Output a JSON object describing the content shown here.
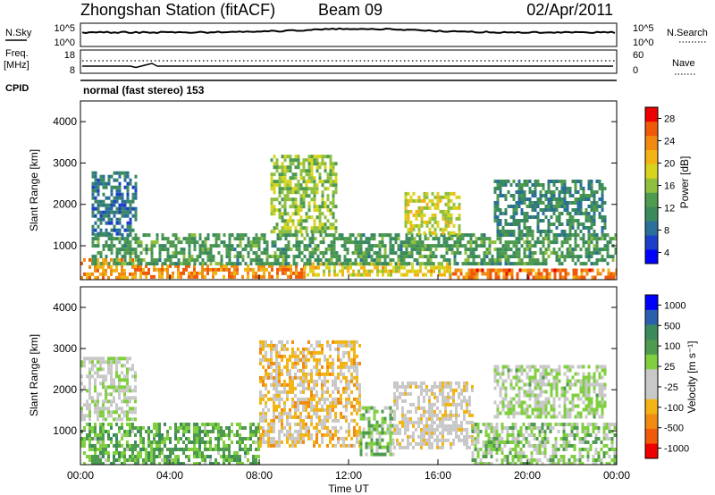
{
  "header": {
    "title": "Zhongshan Station (fitACF)",
    "beam": "Beam 09",
    "date": "02/Apr/2011"
  },
  "aux_panels": {
    "nsky_label": "N.Sky",
    "nsky_ticks": [
      "10^5",
      "10^0"
    ],
    "nsearch_label": "N.Search",
    "nsearch_ticks": [
      "10^5",
      "10^0"
    ],
    "freq_label": "Freq.",
    "freq_unit": "[MHz]",
    "freq_ticks": [
      "18",
      "8"
    ],
    "nave_label": "Nave",
    "nave_ticks": [
      "60",
      "0"
    ],
    "cpid_label": "CPID",
    "cpid_text": "normal (fast stereo) 153"
  },
  "colors": {
    "power_scale": [
      "#0000ff",
      "#1b3fc8",
      "#2a6e9a",
      "#3a8a5e",
      "#4e9a4e",
      "#8fbf3f",
      "#d8d41e",
      "#f2b415",
      "#f08a10",
      "#ef5a08",
      "#ee0000"
    ],
    "velocity_scale": [
      "#ee0000",
      "#f05a0a",
      "#f08a10",
      "#f2b415",
      "#c8c8c8",
      "#c8c8c8",
      "#7fcf3f",
      "#4e9a4e",
      "#3a8a5e",
      "#2a5fb0",
      "#0000ff"
    ]
  },
  "chart_data": [
    {
      "type": "heatmap",
      "panel": "power",
      "ylabel": "Slant Range [km]",
      "ylim": [
        180,
        4500
      ],
      "y_ticks": [
        "4000",
        "3000",
        "2000",
        "1000"
      ],
      "xlim": [
        0,
        24
      ],
      "colorbar_label": "Power [dB]",
      "colorbar_ticks": [
        "28",
        "24",
        "20",
        "16",
        "12",
        "8",
        "4"
      ],
      "colorbar_range": [
        0,
        32
      ],
      "regions": [
        {
          "t0": 0.0,
          "t1": 2.4,
          "r0": 250,
          "r1": 700,
          "value": 24
        },
        {
          "t0": 2.4,
          "t1": 10.0,
          "r0": 250,
          "r1": 550,
          "value": 25
        },
        {
          "t0": 10.0,
          "t1": 16.5,
          "r0": 280,
          "r1": 600,
          "value": 20
        },
        {
          "t0": 16.5,
          "t1": 24.0,
          "r0": 220,
          "r1": 450,
          "value": 26
        },
        {
          "t0": 0.5,
          "t1": 24.0,
          "r0": 550,
          "r1": 1300,
          "value": 12
        },
        {
          "t0": 0.5,
          "t1": 2.5,
          "r0": 1300,
          "r1": 2800,
          "value": 8
        },
        {
          "t0": 8.5,
          "t1": 11.5,
          "r0": 1300,
          "r1": 3200,
          "value": 16
        },
        {
          "t0": 14.5,
          "t1": 17.0,
          "r0": 1300,
          "r1": 2300,
          "value": 18
        },
        {
          "t0": 18.5,
          "t1": 23.5,
          "r0": 1300,
          "r1": 2600,
          "value": 10
        }
      ]
    },
    {
      "type": "heatmap",
      "panel": "velocity",
      "ylabel": "Slant Range [km]",
      "xlabel": "Time UT",
      "ylim": [
        180,
        4500
      ],
      "y_ticks": [
        "4000",
        "3000",
        "2000",
        "1000"
      ],
      "xlim": [
        0,
        24
      ],
      "x_ticks": [
        "00:00",
        "04:00",
        "08:00",
        "12:00",
        "16:00",
        "20:00",
        "00:00"
      ],
      "colorbar_label": "Velocity [m s⁻¹]",
      "colorbar_ticks": [
        "1000",
        "500",
        "100",
        "25",
        "-25",
        "-100",
        "-500",
        "-1000"
      ],
      "colorbar_range": [
        -1000,
        1000
      ],
      "regions": [
        {
          "t0": 0.0,
          "t1": 8.0,
          "r0": 220,
          "r1": 1200,
          "value": 300
        },
        {
          "t0": 0.0,
          "t1": 2.5,
          "r0": 1300,
          "r1": 2800,
          "value": 0
        },
        {
          "t0": 8.0,
          "t1": 12.5,
          "r0": 600,
          "r1": 3200,
          "value": -300
        },
        {
          "t0": 12.5,
          "t1": 14.0,
          "r0": 400,
          "r1": 1600,
          "value": 200
        },
        {
          "t0": 14.0,
          "t1": 17.5,
          "r0": 600,
          "r1": 2200,
          "value": -150
        },
        {
          "t0": 17.5,
          "t1": 24.0,
          "r0": 220,
          "r1": 1200,
          "value": 150
        },
        {
          "t0": 18.5,
          "t1": 23.5,
          "r0": 1300,
          "r1": 2600,
          "value": 60
        }
      ]
    }
  ]
}
